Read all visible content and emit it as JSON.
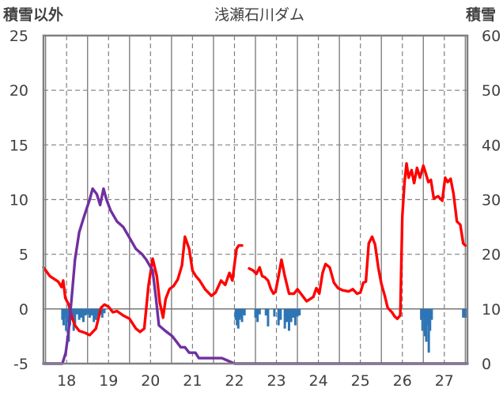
{
  "chart_data": {
    "type": "line",
    "title": "浅瀬石川ダム",
    "left_axis_label": "積雪以外",
    "right_axis_label": "積雪",
    "x_ticks": [
      "18",
      "19",
      "20",
      "21",
      "22",
      "23",
      "24",
      "25",
      "26",
      "27"
    ],
    "x_range": [
      17.45,
      27.55
    ],
    "y_left_range": [
      -5,
      25
    ],
    "y_left_ticks": [
      "25",
      "20",
      "15",
      "10",
      "5",
      "0",
      "-5"
    ],
    "y_right_range": [
      0,
      60
    ],
    "y_right_ticks": [
      "60",
      "50",
      "40",
      "30",
      "20",
      "10",
      "0"
    ],
    "grid": true,
    "colors": {
      "temperature": "#ff0000",
      "snow_depth": "#7030a0",
      "precipitation": "#2e75b6",
      "grid": "#808080",
      "frame": "#808080"
    },
    "series": [
      {
        "key": "temperature",
        "axis": "left",
        "style": "line",
        "x": [
          17.45,
          17.6,
          17.8,
          17.88,
          17.92,
          17.97,
          18.05,
          18.13,
          18.2,
          18.3,
          18.45,
          18.55,
          18.7,
          18.82,
          18.9,
          19.0,
          19.1,
          19.2,
          19.35,
          19.5,
          19.65,
          19.75,
          19.85,
          19.95,
          20.05,
          20.15,
          20.22,
          20.3,
          20.36,
          20.45,
          20.55,
          20.65,
          20.75,
          20.82,
          20.92,
          21.0,
          21.08,
          21.17,
          21.3,
          21.45,
          21.55,
          21.68,
          21.78,
          21.88,
          21.95,
          22.05,
          22.1,
          22.18,
          22.25,
          22.35,
          22.45,
          22.52,
          22.6,
          22.66,
          22.72,
          22.8,
          22.87,
          22.93,
          22.98,
          23.05,
          23.12,
          23.2,
          23.3,
          23.42,
          23.5,
          23.62,
          23.72,
          23.8,
          23.88,
          23.95,
          24.02,
          24.1,
          24.17,
          24.27,
          24.37,
          24.47,
          24.58,
          24.72,
          24.82,
          24.92,
          25.0,
          25.07,
          25.13,
          25.2,
          25.28,
          25.35,
          25.43,
          25.5,
          25.58,
          25.65,
          25.75,
          25.82,
          25.88,
          25.95,
          26.0,
          26.05,
          26.1,
          26.15,
          26.22,
          26.28,
          26.35,
          26.42,
          26.5,
          26.55,
          26.62,
          26.68,
          26.75,
          26.85,
          26.95,
          27.02,
          27.08,
          27.15,
          27.22,
          27.3,
          27.38,
          27.45,
          27.5
        ],
        "y": [
          3.8,
          3.0,
          2.5,
          2.0,
          2.6,
          1.0,
          0.4,
          -0.8,
          -1.5,
          -2.0,
          -2.2,
          -2.4,
          -1.8,
          0.1,
          0.4,
          0.2,
          -0.3,
          -0.2,
          -0.6,
          -0.9,
          -1.8,
          -2.1,
          -1.8,
          2.1,
          4.6,
          3.0,
          0.6,
          -0.8,
          0.9,
          1.8,
          2.1,
          2.7,
          4.0,
          6.6,
          5.5,
          3.5,
          3.0,
          2.6,
          1.8,
          1.2,
          1.5,
          2.6,
          2.2,
          3.3,
          2.6,
          5.5,
          5.8,
          5.8,
          null,
          3.7,
          3.5,
          3.2,
          3.8,
          3.0,
          2.9,
          2.6,
          1.8,
          1.4,
          1.6,
          3.0,
          4.5,
          3.0,
          1.4,
          1.4,
          1.8,
          1.2,
          0.7,
          0.9,
          1.1,
          1.9,
          1.4,
          3.3,
          4.1,
          3.8,
          2.4,
          1.9,
          1.7,
          1.6,
          1.8,
          1.4,
          1.5,
          2.4,
          2.5,
          6.0,
          6.6,
          5.9,
          3.7,
          2.3,
          1.2,
          0.1,
          -0.3,
          -0.7,
          -0.9,
          -0.6,
          8.5,
          11.5,
          13.3,
          12.0,
          12.7,
          11.5,
          12.9,
          12.0,
          13.1,
          12.5,
          11.6,
          11.8,
          10.1,
          10.3,
          9.9,
          12.0,
          11.6,
          11.9,
          10.5,
          8.0,
          7.7,
          6.0,
          5.8
        ]
      },
      {
        "key": "snow_depth",
        "axis": "right",
        "style": "line",
        "x": [
          17.45,
          17.9,
          17.98,
          18.05,
          18.12,
          18.2,
          18.3,
          18.42,
          18.55,
          18.62,
          18.72,
          18.8,
          18.88,
          18.95,
          19.05,
          19.2,
          19.35,
          19.5,
          19.65,
          19.8,
          19.9,
          20.05,
          20.13,
          20.2,
          20.35,
          20.52,
          20.62,
          20.72,
          20.82,
          20.92,
          21.0,
          21.07,
          21.15,
          21.25,
          21.4,
          21.55,
          21.7,
          21.85,
          22.0,
          22.1,
          27.55
        ],
        "y": [
          0,
          0,
          2,
          6,
          12,
          19,
          24,
          27,
          30,
          32,
          31,
          29,
          32,
          30,
          28,
          26,
          25,
          23,
          21,
          20,
          19,
          17,
          12,
          7,
          6,
          5,
          4,
          3,
          3,
          2,
          2,
          2,
          1,
          1,
          1,
          1,
          1,
          0.5,
          0,
          0,
          0
        ]
      },
      {
        "key": "precipitation",
        "axis": "left",
        "style": "bars",
        "x": [
          17.9,
          17.93,
          17.96,
          17.99,
          18.02,
          18.05,
          18.08,
          18.11,
          18.14,
          18.17,
          18.2,
          18.25,
          18.3,
          18.35,
          18.4,
          18.45,
          18.5,
          18.55,
          18.6,
          18.65,
          18.7,
          18.75,
          18.8,
          18.85,
          18.9,
          22.03,
          22.06,
          22.09,
          22.12,
          22.15,
          22.18,
          22.21,
          22.24,
          22.5,
          22.55,
          22.6,
          22.75,
          22.8,
          22.95,
          23.05,
          23.1,
          23.2,
          23.25,
          23.3,
          23.35,
          23.4,
          23.45,
          23.5,
          23.55,
          26.45,
          26.48,
          26.51,
          26.54,
          26.57,
          26.6,
          26.63,
          26.66,
          26.7,
          27.45,
          27.5
        ],
        "y": [
          -1,
          -1.5,
          -0.8,
          -2,
          -1.2,
          -3,
          -1.5,
          -1,
          -0.8,
          -2,
          -1.5,
          -0.5,
          -1,
          -0.8,
          -1.2,
          -0.6,
          -0.5,
          -0.8,
          -0.6,
          -1.2,
          -1,
          -0.7,
          -0.5,
          -0.8,
          -0.4,
          -1,
          -1.5,
          -1.8,
          -1,
          -0.8,
          -1.2,
          -0.5,
          -0.6,
          -0.8,
          -1.2,
          -0.5,
          -0.6,
          -1.6,
          -0.7,
          -1.5,
          -1,
          -1.8,
          -1.2,
          -2,
          -1.2,
          -0.8,
          -1.5,
          -0.7,
          -0.6,
          -1,
          -2,
          -0.8,
          -2.5,
          -3,
          -1.5,
          -4,
          -2,
          -1,
          -0.8,
          -0.8
        ]
      }
    ]
  }
}
